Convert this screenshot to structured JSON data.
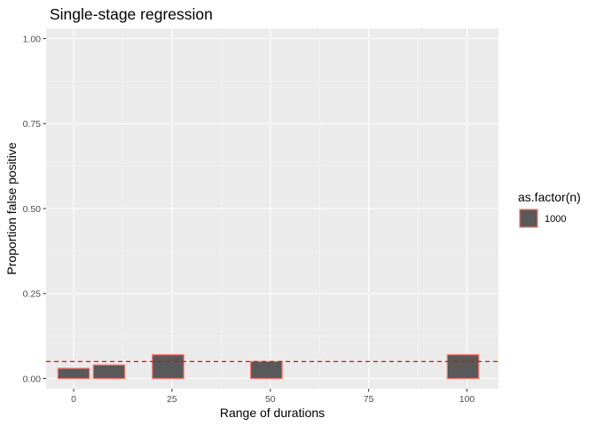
{
  "chart_data": {
    "type": "bar",
    "title": "Single-stage regression",
    "xlabel": "Range of durations",
    "ylabel": "Proportion false positive",
    "xlim": [
      -7,
      108
    ],
    "ylim": [
      -0.03,
      1.03
    ],
    "x_ticks": [
      0,
      25,
      50,
      75,
      100
    ],
    "x_tick_labels": [
      "0",
      "25",
      "50",
      "75",
      "100"
    ],
    "y_ticks": [
      0,
      0.25,
      0.5,
      0.75,
      1
    ],
    "y_tick_labels": [
      "0.00",
      "0.25",
      "0.50",
      "0.75",
      "1.00"
    ],
    "grid": true,
    "reference_line": {
      "y": 0.05,
      "style": "dashed",
      "color": "#ff0000"
    },
    "bar_width": 8,
    "legend": {
      "title": "as.factor(n)",
      "position": "right"
    },
    "series": [
      {
        "name": "1000",
        "fill": "#595959",
        "outline": "#f8766d",
        "points": [
          {
            "x": 0,
            "y": 0.03
          },
          {
            "x": 9,
            "y": 0.04
          },
          {
            "x": 24,
            "y": 0.07
          },
          {
            "x": 49,
            "y": 0.05
          },
          {
            "x": 99,
            "y": 0.07
          }
        ]
      }
    ]
  }
}
